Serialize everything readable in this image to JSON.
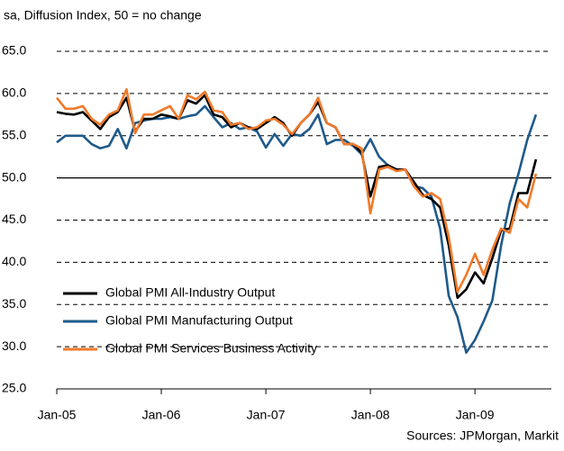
{
  "chart_data": {
    "type": "line",
    "subtitle": "sa, Diffusion Index, 50 = no change",
    "source": "Sources: JPMorgan, Markit",
    "categories": [
      "Jan-05",
      null,
      null,
      null,
      null,
      null,
      null,
      null,
      null,
      null,
      null,
      null,
      "Jan-06",
      null,
      null,
      null,
      null,
      null,
      null,
      null,
      null,
      null,
      null,
      null,
      "Jan-07",
      null,
      null,
      null,
      null,
      null,
      null,
      null,
      null,
      null,
      null,
      null,
      "Jan-08",
      null,
      null,
      null,
      null,
      null,
      null,
      null,
      null,
      null,
      null,
      null,
      "Jan-09",
      null,
      null,
      null,
      null,
      null,
      null,
      null
    ],
    "series": [
      {
        "name": "Global PMI All-Industry Output",
        "color": "#000000",
        "values": [
          57.8,
          57.6,
          57.5,
          57.8,
          56.8,
          55.8,
          57.2,
          57.8,
          59.5,
          55.5,
          57.0,
          57.0,
          57.5,
          57.3,
          57.0,
          59.2,
          58.8,
          59.8,
          57.5,
          57.2,
          56.0,
          56.5,
          56.0,
          55.8,
          56.5,
          57.2,
          56.5,
          55.0,
          56.5,
          57.5,
          59.0,
          56.5,
          56.0,
          54.0,
          54.0,
          53.0,
          47.8,
          51.3,
          51.5,
          51.0,
          51.0,
          49.5,
          48.0,
          47.5,
          46.5,
          42.0,
          35.8,
          36.8,
          38.8,
          37.5,
          40.5,
          43.8,
          44.0,
          48.2,
          48.2,
          52.2
        ]
      },
      {
        "name": "Global PMI Manufacturing Output",
        "color": "#1f5a8a",
        "values": [
          54.2,
          55.0,
          55.0,
          55.0,
          54.0,
          53.5,
          53.8,
          55.8,
          53.5,
          56.5,
          56.8,
          57.0,
          57.0,
          57.2,
          57.0,
          57.3,
          57.5,
          58.5,
          57.2,
          56.0,
          56.5,
          55.8,
          56.0,
          55.5,
          53.6,
          55.2,
          53.8,
          55.2,
          55.0,
          55.8,
          57.5,
          54.0,
          54.5,
          54.5,
          53.8,
          52.8,
          54.6,
          52.5,
          51.5,
          51.0,
          51.0,
          49.0,
          48.8,
          47.8,
          44.0,
          36.0,
          33.5,
          29.3,
          30.8,
          33.0,
          35.5,
          42.0,
          47.0,
          50.5,
          54.5,
          57.5
        ]
      },
      {
        "name": "Global PMI Services Business Activity",
        "color": "#f07a2a",
        "values": [
          59.5,
          58.2,
          58.2,
          58.5,
          57.0,
          56.3,
          57.5,
          58.0,
          60.5,
          55.3,
          57.5,
          57.5,
          58.0,
          58.5,
          57.0,
          59.8,
          59.3,
          60.2,
          58.0,
          57.8,
          56.3,
          56.5,
          55.8,
          56.0,
          56.8,
          57.0,
          56.3,
          55.2,
          56.5,
          57.5,
          59.5,
          56.5,
          56.0,
          54.0,
          54.0,
          53.5,
          45.8,
          51.0,
          51.3,
          50.8,
          51.0,
          49.0,
          47.8,
          48.2,
          47.5,
          43.0,
          36.5,
          38.5,
          41.0,
          38.5,
          41.5,
          44.0,
          43.5,
          47.5,
          46.5,
          50.5
        ]
      }
    ],
    "ylim": [
      25,
      65
    ],
    "yticks": [
      {
        "value": 25,
        "label": "25.0"
      },
      {
        "value": 30,
        "label": "30.0"
      },
      {
        "value": 35,
        "label": "35.0"
      },
      {
        "value": 40,
        "label": "40.0"
      },
      {
        "value": 45,
        "label": "45.0"
      },
      {
        "value": 50,
        "label": "50.0"
      },
      {
        "value": 55,
        "label": "55.0"
      },
      {
        "value": 60,
        "label": "60.0"
      },
      {
        "value": 65,
        "label": "65.0"
      }
    ],
    "grid": true,
    "reference_line": 50,
    "legend": "lower left"
  }
}
